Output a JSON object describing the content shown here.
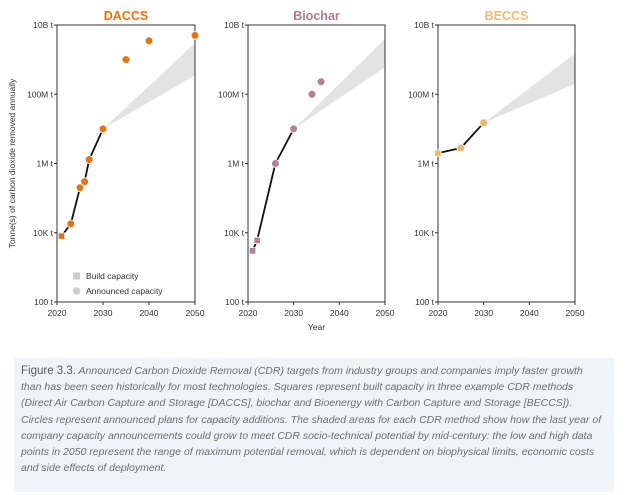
{
  "chart_data": [
    {
      "type": "scatter",
      "title": "DACCS",
      "title_color": "#e8730e",
      "color": "#df7412",
      "xlim": [
        2020,
        2050
      ],
      "ylim_log10": [
        2,
        10
      ],
      "x_ticks": [
        2020,
        2030,
        2040,
        2050
      ],
      "y_ticks": [
        {
          "value": 10000000000,
          "label": "10B t"
        },
        {
          "value": 100000000,
          "label": "100M t"
        },
        {
          "value": 1000000,
          "label": "1M t"
        },
        {
          "value": 10000,
          "label": "10K t"
        },
        {
          "value": 100,
          "label": "100 t"
        }
      ],
      "ylabel": "Tonne(s) of carbon dioxide removed annually",
      "xlabel": "",
      "series": [
        {
          "name": "Build capacity",
          "marker": "square",
          "points": [
            {
              "x": 2021,
              "y": 8000
            }
          ]
        },
        {
          "name": "Announced capacity",
          "marker": "circle",
          "points": [
            {
              "x": 2023,
              "y": 18000
            },
            {
              "x": 2025,
              "y": 200000
            },
            {
              "x": 2026,
              "y": 300000
            },
            {
              "x": 2027,
              "y": 1300000
            },
            {
              "x": 2030,
              "y": 10000000
            },
            {
              "x": 2035,
              "y": 1000000000
            },
            {
              "x": 2040,
              "y": 3500000000
            },
            {
              "x": 2050,
              "y": 5000000000
            }
          ]
        }
      ],
      "trend_line": [
        {
          "x": 2021,
          "y": 8000
        },
        {
          "x": 2023,
          "y": 18000
        },
        {
          "x": 2025,
          "y": 200000
        },
        {
          "x": 2026,
          "y": 300000
        },
        {
          "x": 2027,
          "y": 1300000
        },
        {
          "x": 2030,
          "y": 10000000
        }
      ],
      "potential_band": {
        "x0": 2030,
        "y0": 10000000,
        "x1": 2050,
        "y1_low": 350000000,
        "y1_high": 3000000000
      },
      "legend": {
        "placement": "bottom-left",
        "entries": [
          {
            "label": "Build capacity",
            "marker": "square"
          },
          {
            "label": "Announced capacity",
            "marker": "circle"
          }
        ]
      }
    },
    {
      "type": "scatter",
      "title": "Biochar",
      "title_color": "#b47a92",
      "color": "#b57f96",
      "xlim": [
        2020,
        2050
      ],
      "ylim_log10": [
        2,
        10
      ],
      "x_ticks": [
        2020,
        2030,
        2040,
        2050
      ],
      "y_ticks": [
        {
          "value": 10000000000,
          "label": "10B t"
        },
        {
          "value": 100000000,
          "label": "100M t"
        },
        {
          "value": 1000000,
          "label": "1M t"
        },
        {
          "value": 10000,
          "label": "10K t"
        },
        {
          "value": 100,
          "label": "100 t"
        }
      ],
      "ylabel": "",
      "xlabel": "Year",
      "series": [
        {
          "name": "Build capacity",
          "marker": "square",
          "points": [
            {
              "x": 2021,
              "y": 3000
            },
            {
              "x": 2022,
              "y": 6000
            }
          ]
        },
        {
          "name": "Announced capacity",
          "marker": "circle",
          "points": [
            {
              "x": 2026,
              "y": 1000000
            },
            {
              "x": 2030,
              "y": 10000000
            },
            {
              "x": 2034,
              "y": 100000000
            },
            {
              "x": 2036,
              "y": 230000000
            }
          ]
        }
      ],
      "trend_line": [
        {
          "x": 2021,
          "y": 3000
        },
        {
          "x": 2022,
          "y": 6000
        },
        {
          "x": 2026,
          "y": 1000000
        },
        {
          "x": 2030,
          "y": 10000000
        }
      ],
      "potential_band": {
        "x0": 2030,
        "y0": 10000000,
        "x1": 2050,
        "y1_low": 600000000,
        "y1_high": 4000000000
      }
    },
    {
      "type": "scatter",
      "title": "BECCS",
      "title_color": "#f0bc72",
      "color": "#eeb86c",
      "xlim": [
        2020,
        2050
      ],
      "ylim_log10": [
        2,
        10
      ],
      "x_ticks": [
        2020,
        2030,
        2040,
        2050
      ],
      "y_ticks": [
        {
          "value": 10000000000,
          "label": "10B t"
        },
        {
          "value": 100000000,
          "label": "100M t"
        },
        {
          "value": 1000000,
          "label": "1M t"
        },
        {
          "value": 10000,
          "label": "10K t"
        },
        {
          "value": 100,
          "label": "100 t"
        }
      ],
      "ylabel": "",
      "xlabel": "",
      "series": [
        {
          "name": "Build capacity",
          "marker": "square",
          "points": [
            {
              "x": 2020,
              "y": 2000000
            }
          ]
        },
        {
          "name": "Announced capacity",
          "marker": "circle",
          "points": [
            {
              "x": 2025,
              "y": 2800000
            },
            {
              "x": 2030,
              "y": 15000000
            }
          ]
        }
      ],
      "trend_line": [
        {
          "x": 2020,
          "y": 2000000
        },
        {
          "x": 2025,
          "y": 2800000
        },
        {
          "x": 2030,
          "y": 15000000
        }
      ],
      "potential_band": {
        "x0": 2030,
        "y0": 15000000,
        "x1": 2050,
        "y1_low": 200000000,
        "y1_high": 1500000000
      }
    }
  ],
  "band_color": "#e3e3e3",
  "legend_marker_color": "#cccccc",
  "caption": {
    "lead": "Figure 3.3.",
    "text": " Announced Carbon Dioxide Removal (CDR) targets from industry groups and companies imply faster growth than has been seen historically for most technologies. Squares represent built capacity in three example CDR methods (Direct Air Carbon Capture and Storage [DACCS], biochar and Bioenergy with Carbon Capture and Storage [BECCS]). Circles represent announced plans for capacity additions. The shaded areas for each CDR method show how the last year of company capacity announcements could grow to meet CDR socio-technical potential by mid-century: the low and high data points in 2050 represent the range of maximum potential removal, which is dependent on biophysical limits, economic costs and side effects of deployment."
  }
}
